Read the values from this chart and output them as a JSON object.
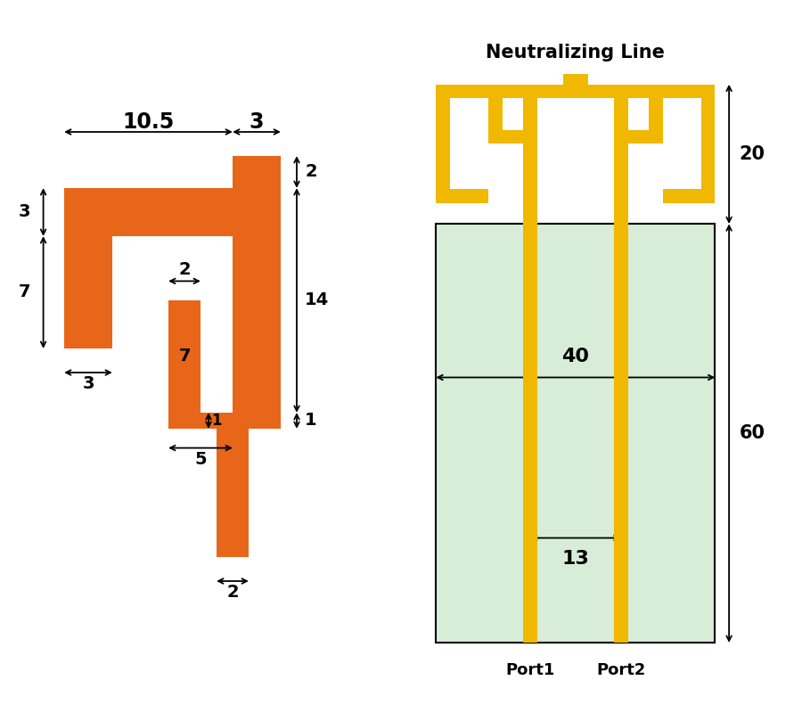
{
  "orange_color": "#E8661A",
  "gold_color": "#F0B800",
  "green_bg": "#D8EDD8",
  "title_nl": "Neutralizing Line",
  "port1_label": "Port1",
  "port2_label": "Port2",
  "dim_10_5": "10.5",
  "dim_3_top": "3",
  "dim_2_right": "2",
  "dim_3_left": "3",
  "dim_7_left": "7",
  "dim_14_right": "14",
  "dim_1_bottom": "1",
  "dim_3_inner": "3",
  "dim_2_inner": "2",
  "dim_7_inner": "7",
  "dim_5_inner": "5",
  "dim_2_feed": "2",
  "dim_20": "20",
  "dim_60": "60",
  "dim_40": "40",
  "dim_13": "13"
}
